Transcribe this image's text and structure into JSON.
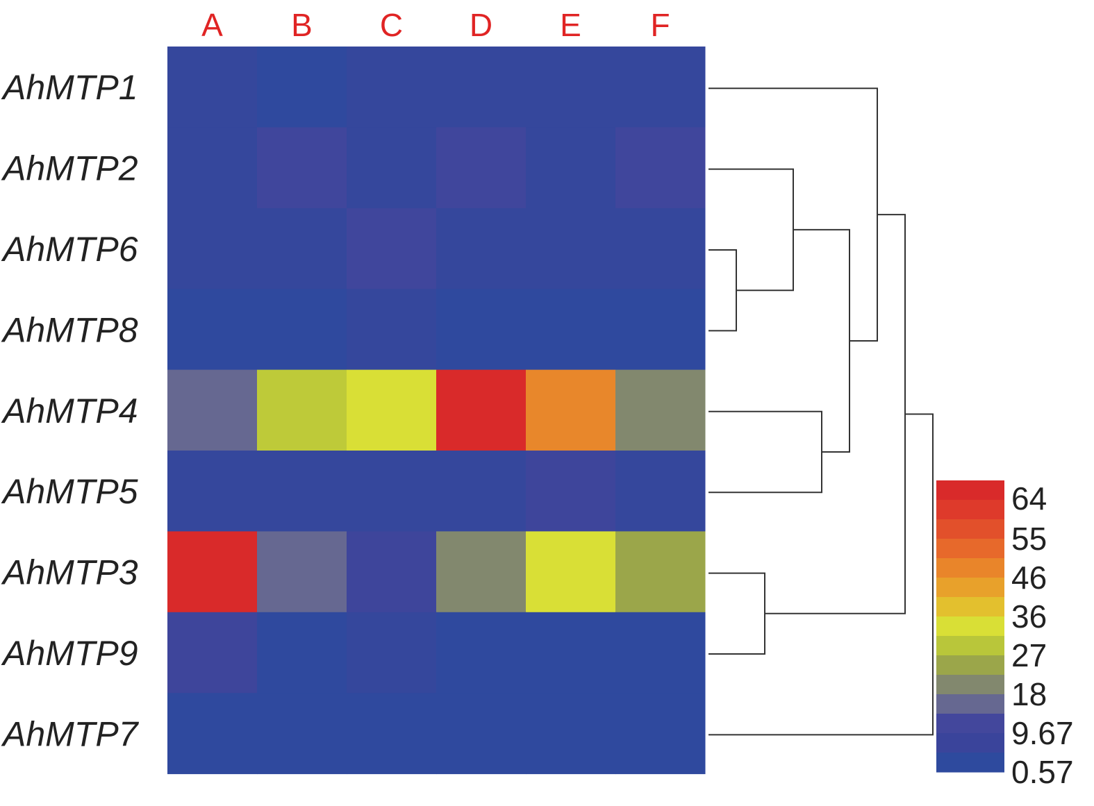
{
  "chart_data": {
    "type": "heatmap",
    "columns": [
      "A",
      "B",
      "C",
      "D",
      "E",
      "F"
    ],
    "rows": [
      "AhMTP1",
      "AhMTP2",
      "AhMTP6",
      "AhMTP8",
      "AhMTP4",
      "AhMTP5",
      "AhMTP3",
      "AhMTP9",
      "AhMTP7"
    ],
    "values": [
      [
        3,
        1,
        3,
        3,
        3,
        3
      ],
      [
        3,
        8,
        3,
        8,
        3,
        8
      ],
      [
        3,
        3,
        8,
        3,
        3,
        3
      ],
      [
        1,
        1,
        3,
        1,
        1,
        1
      ],
      [
        14,
        28,
        33,
        64,
        48,
        18
      ],
      [
        3,
        3,
        3,
        3,
        7,
        3
      ],
      [
        64,
        14,
        7,
        18,
        35,
        23
      ],
      [
        7,
        1,
        3,
        1,
        1,
        1
      ],
      [
        1,
        1,
        1,
        1,
        1,
        1
      ]
    ],
    "legend": {
      "ticks": [
        "64",
        "55",
        "46",
        "36",
        "27",
        "18",
        "9.67",
        "0.57"
      ],
      "tick_values": [
        64,
        55,
        46,
        36,
        27,
        18,
        9.67,
        0.57
      ],
      "min": 0.57,
      "max": 64,
      "placement": "bottom-right",
      "colors": [
        "#d92a2a",
        "#de3a2b",
        "#e2502b",
        "#e7692b",
        "#e9852a",
        "#e8a12b",
        "#e3c02e",
        "#d9df36",
        "#b9c63a",
        "#9ba64a",
        "#82886e",
        "#666891",
        "#43479c",
        "#3a449b",
        "#2e4a9e"
      ]
    },
    "dendrogram": {
      "side": "right",
      "merges": [
        [
          "AhMTP6",
          "AhMTP8"
        ],
        [
          "AhMTP2",
          "AhMTP6+AhMTP8"
        ],
        [
          "AhMTP4",
          "AhMTP5"
        ],
        [
          "AhMTP2+AhMTP6+AhMTP8",
          "AhMTP4+AhMTP5"
        ],
        [
          "AhMTP1",
          "AhMTP2+AhMTP6+AhMTP8+AhMTP4+AhMTP5"
        ],
        [
          "AhMTP3",
          "AhMTP9"
        ],
        [
          "AhMTP1+AhMTP2+AhMTP6+AhMTP8+AhMTP4+AhMTP5",
          "AhMTP3+AhMTP9"
        ],
        [
          "AhMTP1+AhMTP2+AhMTP6+AhMTP8+AhMTP4+AhMTP5+AhMTP3+AhMTP9",
          "AhMTP7"
        ]
      ]
    },
    "column_label_color": "#e02424",
    "grid": false
  }
}
